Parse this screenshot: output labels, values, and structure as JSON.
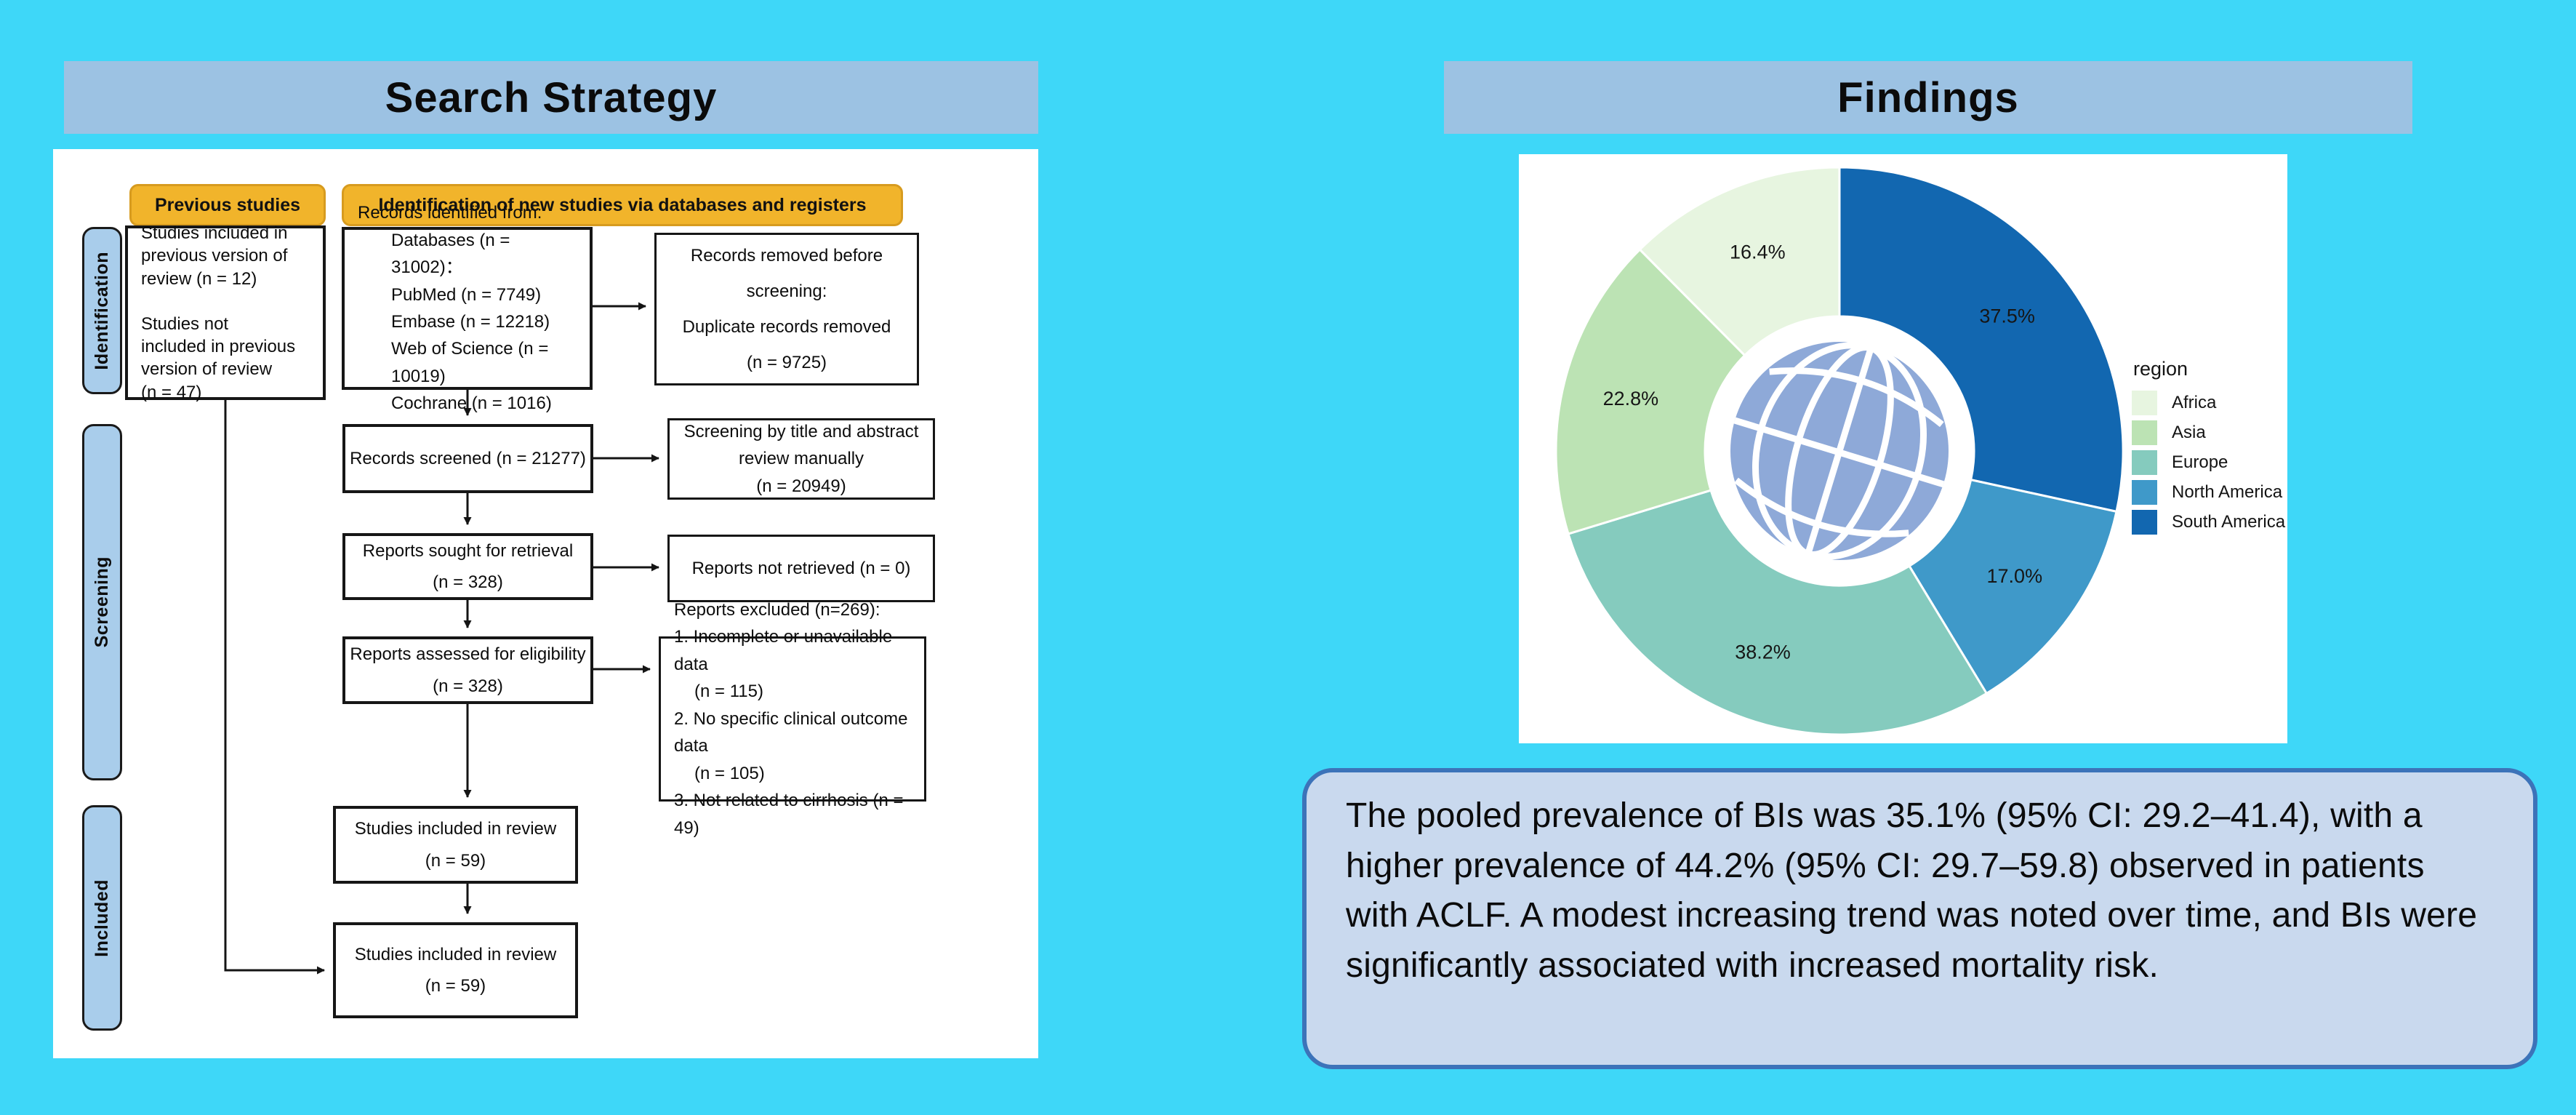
{
  "colors": {
    "background": "#3ED7F8",
    "header_bar": "#9CC2E3",
    "panel": "#FFFFFF",
    "yellow_header": "#F1B42B",
    "stage_fill": "#A9CDEB",
    "summary_bg": "#C9D9EE",
    "summary_border": "#3C73B9",
    "globe": "#8EA9D8"
  },
  "left_panel": {
    "title": "Search Strategy",
    "flow": {
      "column_headers": [
        {
          "label": "Previous studies"
        },
        {
          "label": "Identification of new studies via databases and registers"
        }
      ],
      "stages": [
        {
          "label": "Identification"
        },
        {
          "label": "Screening"
        },
        {
          "label": "Included"
        }
      ],
      "boxes": {
        "previous_studies": {
          "lines": [
            "Studies included in",
            "previous version of",
            "review (n = 12)",
            "",
            "Studies not",
            "included in previous",
            "version of review",
            "(n = 47)"
          ]
        },
        "records_identified": {
          "lines": [
            "Records identified from:",
            {
              "t": "Databases (n = 31002)：",
              "cls": "ind"
            },
            {
              "t": "PubMed (n = 7749)",
              "cls": "ind"
            },
            {
              "t": "Embase (n = 12218)",
              "cls": "ind"
            },
            {
              "t": "Web of Science (n = 10019)",
              "cls": "ind"
            },
            {
              "t": "Cochrane (n = 1016)",
              "cls": "ind"
            }
          ]
        },
        "records_removed": {
          "lines": [
            "Records removed before screening:",
            "Duplicate records removed",
            "(n = 9725)"
          ]
        },
        "records_screened": {
          "lines": [
            "Records screened (n = 21277)"
          ]
        },
        "screening_manual": {
          "lines": [
            "Screening by title and abstract",
            "review manually",
            "(n = 20949)"
          ]
        },
        "reports_sought": {
          "lines": [
            "Reports sought for retrieval",
            "(n = 328)"
          ]
        },
        "reports_not_retrieved": {
          "lines": [
            "Reports not retrieved (n = 0)"
          ]
        },
        "reports_assessed": {
          "lines": [
            "Reports assessed for eligibility",
            "(n = 328)"
          ]
        },
        "reports_excluded": {
          "lines": [
            "Reports excluded (n=269):",
            "1. Incomplete or unavailable data",
            {
              "t": "(n = 115)",
              "cls": "ind2"
            },
            "2. No specific clinical outcome data",
            {
              "t": "(n = 105)",
              "cls": "ind2"
            },
            "3. Not related to cirrhosis (n = 49)"
          ]
        },
        "included_review_1": {
          "lines": [
            "Studies included in review",
            "(n = 59)"
          ]
        },
        "included_review_2": {
          "lines": [
            "Studies included in review",
            "(n = 59)"
          ]
        }
      }
    }
  },
  "right_panel": {
    "title": "Findings",
    "summary": "The pooled prevalence of BIs was 35.1% (95% CI: 29.2–41.4), with a higher prevalence of 44.2% (95% CI: 29.7–59.8) observed in patients with ACLF. A modest increasing trend was noted over time, and BIs were significantly associated with increased mortality risk."
  },
  "chart_data": {
    "type": "pie",
    "subtype": "donut",
    "legend_title": "region",
    "legend_position": "right",
    "direction": "clockwise",
    "start_angle_deg": 0,
    "center_icon": "globe",
    "slices": [
      {
        "name": "South America",
        "value": 37.5,
        "label": "37.5%",
        "color": "#1267B0"
      },
      {
        "name": "North America",
        "value": 17.0,
        "label": "17.0%",
        "color": "#3F99C9"
      },
      {
        "name": "Europe",
        "value": 38.2,
        "label": "38.2%",
        "color": "#85CBBE"
      },
      {
        "name": "Asia",
        "value": 22.8,
        "label": "22.8%",
        "color": "#BCE3B4"
      },
      {
        "name": "Africa",
        "value": 16.4,
        "label": "16.4%",
        "color": "#E7F5E0"
      }
    ],
    "legend_order": [
      "Africa",
      "Asia",
      "Europe",
      "North America",
      "South America"
    ]
  }
}
